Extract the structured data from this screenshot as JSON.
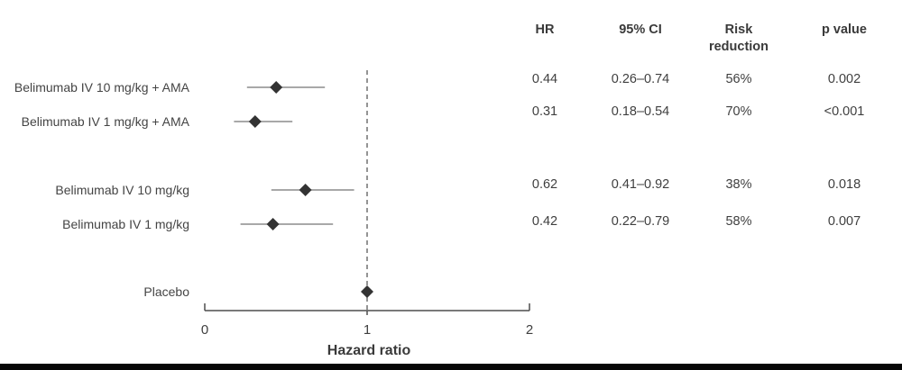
{
  "chart_data": {
    "type": "forest",
    "xlabel": "Hazard ratio",
    "xlim": [
      0,
      2
    ],
    "x_ticks": [
      0,
      1,
      2
    ],
    "x_tick_labels": [
      "0",
      "1",
      "2"
    ],
    "reference_line": 1,
    "legend": "none",
    "grid": "off",
    "table_headers": [
      "HR",
      "95% CI",
      "Risk reduction",
      "p value"
    ],
    "rows": [
      {
        "label": "Belimumab IV 10 mg/kg + AMA",
        "hr": 0.44,
        "ci_low": 0.26,
        "ci_high": 0.74,
        "hr_text": "0.44",
        "ci_text": "0.26–0.74",
        "risk_reduction": "56%",
        "p_value": "0.002",
        "group": 1
      },
      {
        "label": "Belimumab IV 1 mg/kg + AMA",
        "hr": 0.31,
        "ci_low": 0.18,
        "ci_high": 0.54,
        "hr_text": "0.31",
        "ci_text": "0.18–0.54",
        "risk_reduction": "70%",
        "p_value": "<0.001",
        "group": 1
      },
      {
        "label": "Belimumab IV 10 mg/kg",
        "hr": 0.62,
        "ci_low": 0.41,
        "ci_high": 0.92,
        "hr_text": "0.62",
        "ci_text": "0.41–0.92",
        "risk_reduction": "38%",
        "p_value": "0.018",
        "group": 2
      },
      {
        "label": "Belimumab IV 1 mg/kg",
        "hr": 0.42,
        "ci_low": 0.22,
        "ci_high": 0.79,
        "hr_text": "0.42",
        "ci_text": "0.22–0.79",
        "risk_reduction": "58%",
        "p_value": "0.007",
        "group": 2
      },
      {
        "label": "Placebo",
        "hr": 1.0,
        "ci_low": null,
        "ci_high": null,
        "hr_text": "",
        "ci_text": "",
        "risk_reduction": "",
        "p_value": "",
        "group": 3
      }
    ]
  },
  "colors": {
    "text": "#3f3f3f",
    "label_text": "#444444",
    "header_text": "#3a3a3a",
    "ci_line": "#8c8c8c",
    "marker": "#333333",
    "axis": "#4d4d4d",
    "reference_line": "#4d4d4d",
    "bottom_bar": "#060606"
  }
}
